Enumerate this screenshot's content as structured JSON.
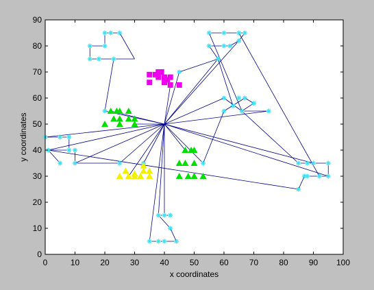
{
  "window": {
    "background": "#c0c0c0"
  },
  "chart_data": {
    "type": "scatter",
    "title": "",
    "xlabel": "x coordinates",
    "ylabel": "y coordinates",
    "xlim": [
      0,
      100
    ],
    "ylim": [
      0,
      90
    ],
    "xticks": [
      0,
      10,
      20,
      30,
      40,
      50,
      60,
      70,
      80,
      90,
      100
    ],
    "yticks": [
      0,
      10,
      20,
      30,
      40,
      50,
      60,
      70,
      80,
      90
    ],
    "grid": false,
    "legend": "none",
    "colors": {
      "edges": "#00008b",
      "cyan": "#40e0f0",
      "magenta": "#ee00ee",
      "green": "#00e000",
      "yellow": "#f0f000"
    },
    "hub": [
      40,
      50
    ],
    "points_cyan": [
      [
        0,
        45
      ],
      [
        5,
        45
      ],
      [
        8,
        45
      ],
      [
        1,
        40
      ],
      [
        8,
        40
      ],
      [
        10,
        40
      ],
      [
        5,
        35
      ],
      [
        10,
        35
      ],
      [
        20,
        85
      ],
      [
        22,
        85
      ],
      [
        25,
        85
      ],
      [
        15,
        80
      ],
      [
        20,
        80
      ],
      [
        15,
        75
      ],
      [
        18,
        75
      ],
      [
        23,
        75
      ],
      [
        20,
        55
      ],
      [
        45,
        70
      ],
      [
        45,
        65
      ],
      [
        55,
        85
      ],
      [
        60,
        85
      ],
      [
        65,
        85
      ],
      [
        67,
        85
      ],
      [
        55,
        80
      ],
      [
        60,
        80
      ],
      [
        62,
        80
      ],
      [
        65,
        82
      ],
      [
        58,
        75
      ],
      [
        60,
        60
      ],
      [
        65,
        60
      ],
      [
        67,
        60
      ],
      [
        70,
        58
      ],
      [
        60,
        55
      ],
      [
        66,
        55
      ],
      [
        75,
        55
      ],
      [
        63,
        57
      ],
      [
        85,
        35
      ],
      [
        88,
        35
      ],
      [
        90,
        35
      ],
      [
        95,
        35
      ],
      [
        87,
        30
      ],
      [
        88,
        30
      ],
      [
        92,
        30
      ],
      [
        95,
        30
      ],
      [
        85,
        25
      ],
      [
        38,
        15
      ],
      [
        40,
        15
      ],
      [
        42,
        15
      ],
      [
        42,
        10
      ],
      [
        35,
        5
      ],
      [
        38,
        5
      ],
      [
        40,
        5
      ],
      [
        44,
        5
      ],
      [
        53,
        35
      ],
      [
        25,
        35
      ],
      [
        33,
        35
      ]
    ],
    "points_magenta": [
      [
        35,
        69
      ],
      [
        37,
        69
      ],
      [
        38,
        70
      ],
      [
        39,
        70
      ],
      [
        40,
        68
      ],
      [
        41,
        67
      ],
      [
        42,
        68
      ],
      [
        35,
        66
      ],
      [
        40,
        66
      ],
      [
        42,
        65
      ],
      [
        45,
        65
      ],
      [
        38,
        68
      ]
    ],
    "points_green": [
      [
        20,
        50
      ],
      [
        23,
        52
      ],
      [
        22,
        55
      ],
      [
        24,
        55
      ],
      [
        25,
        52
      ],
      [
        25,
        50
      ],
      [
        25,
        55
      ],
      [
        28,
        55
      ],
      [
        28,
        52
      ],
      [
        30,
        52
      ],
      [
        30,
        50
      ],
      [
        47,
        40
      ],
      [
        49,
        40
      ],
      [
        50,
        40
      ],
      [
        45,
        35
      ],
      [
        47,
        35
      ],
      [
        50,
        35
      ],
      [
        45,
        30
      ],
      [
        48,
        30
      ],
      [
        50,
        30
      ],
      [
        53,
        30
      ]
    ],
    "points_yellow": [
      [
        25,
        30
      ],
      [
        27,
        32
      ],
      [
        28,
        30
      ],
      [
        30,
        31
      ],
      [
        30,
        30
      ],
      [
        32,
        30
      ],
      [
        33,
        32
      ],
      [
        33,
        34
      ],
      [
        35,
        30
      ],
      [
        35,
        32
      ]
    ],
    "edges": [
      [
        [
          40,
          50
        ],
        [
          0,
          45
        ]
      ],
      [
        [
          40,
          50
        ],
        [
          1,
          40
        ]
      ],
      [
        [
          40,
          50
        ],
        [
          10,
          35
        ]
      ],
      [
        [
          40,
          50
        ],
        [
          20,
          55
        ]
      ],
      [
        [
          40,
          50
        ],
        [
          22,
          55
        ]
      ],
      [
        [
          40,
          50
        ],
        [
          30,
          50
        ]
      ],
      [
        [
          40,
          50
        ],
        [
          45,
          70
        ]
      ],
      [
        [
          40,
          50
        ],
        [
          58,
          75
        ]
      ],
      [
        [
          40,
          50
        ],
        [
          60,
          60
        ]
      ],
      [
        [
          40,
          50
        ],
        [
          65,
          82
        ]
      ],
      [
        [
          40,
          50
        ],
        [
          75,
          55
        ]
      ],
      [
        [
          40,
          50
        ],
        [
          90,
          35
        ]
      ],
      [
        [
          40,
          50
        ],
        [
          95,
          30
        ]
      ],
      [
        [
          40,
          50
        ],
        [
          53,
          35
        ]
      ],
      [
        [
          40,
          50
        ],
        [
          47,
          40
        ]
      ],
      [
        [
          40,
          50
        ],
        [
          38,
          15
        ]
      ],
      [
        [
          40,
          50
        ],
        [
          25,
          35
        ]
      ],
      [
        [
          40,
          50
        ],
        [
          33,
          35
        ]
      ],
      [
        [
          40,
          50
        ],
        [
          28,
          30
        ]
      ],
      [
        [
          40,
          50
        ],
        [
          42,
          65
        ]
      ],
      [
        [
          0,
          45
        ],
        [
          8,
          45
        ]
      ],
      [
        [
          8,
          45
        ],
        [
          8,
          40
        ]
      ],
      [
        [
          8,
          40
        ],
        [
          1,
          40
        ]
      ],
      [
        [
          1,
          40
        ],
        [
          5,
          35
        ]
      ],
      [
        [
          1,
          40
        ],
        [
          85,
          25
        ]
      ],
      [
        [
          10,
          40
        ],
        [
          10,
          35
        ]
      ],
      [
        [
          10,
          35
        ],
        [
          25,
          35
        ]
      ],
      [
        [
          20,
          85
        ],
        [
          25,
          85
        ]
      ],
      [
        [
          25,
          85
        ],
        [
          30,
          75
        ]
      ],
      [
        [
          30,
          75
        ],
        [
          23,
          75
        ]
      ],
      [
        [
          23,
          75
        ],
        [
          15,
          75
        ]
      ],
      [
        [
          15,
          80
        ],
        [
          20,
          80
        ]
      ],
      [
        [
          20,
          80
        ],
        [
          20,
          85
        ]
      ],
      [
        [
          15,
          75
        ],
        [
          15,
          80
        ]
      ],
      [
        [
          23,
          75
        ],
        [
          20,
          55
        ]
      ],
      [
        [
          55,
          85
        ],
        [
          67,
          85
        ]
      ],
      [
        [
          67,
          85
        ],
        [
          65,
          82
        ]
      ],
      [
        [
          65,
          82
        ],
        [
          62,
          80
        ]
      ],
      [
        [
          62,
          80
        ],
        [
          55,
          80
        ]
      ],
      [
        [
          55,
          80
        ],
        [
          58,
          75
        ]
      ],
      [
        [
          58,
          75
        ],
        [
          45,
          70
        ]
      ],
      [
        [
          55,
          85
        ],
        [
          66,
          55
        ]
      ],
      [
        [
          58,
          75
        ],
        [
          63,
          57
        ]
      ],
      [
        [
          60,
          60
        ],
        [
          66,
          55
        ]
      ],
      [
        [
          66,
          55
        ],
        [
          75,
          55
        ]
      ],
      [
        [
          66,
          55
        ],
        [
          70,
          58
        ]
      ],
      [
        [
          70,
          58
        ],
        [
          67,
          60
        ]
      ],
      [
        [
          67,
          60
        ],
        [
          60,
          55
        ]
      ],
      [
        [
          60,
          55
        ],
        [
          53,
          35
        ]
      ],
      [
        [
          66,
          55
        ],
        [
          85,
          35
        ]
      ],
      [
        [
          85,
          35
        ],
        [
          95,
          35
        ]
      ],
      [
        [
          95,
          35
        ],
        [
          95,
          30
        ]
      ],
      [
        [
          95,
          30
        ],
        [
          87,
          30
        ]
      ],
      [
        [
          87,
          30
        ],
        [
          85,
          25
        ]
      ],
      [
        [
          65,
          85
        ],
        [
          92,
          30
        ]
      ],
      [
        [
          35,
          5
        ],
        [
          44,
          5
        ]
      ],
      [
        [
          44,
          5
        ],
        [
          42,
          10
        ]
      ],
      [
        [
          42,
          10
        ],
        [
          38,
          15
        ]
      ],
      [
        [
          38,
          15
        ],
        [
          42,
          15
        ]
      ],
      [
        [
          40,
          15
        ],
        [
          40,
          50
        ]
      ],
      [
        [
          35,
          5
        ],
        [
          40,
          50
        ]
      ]
    ]
  }
}
